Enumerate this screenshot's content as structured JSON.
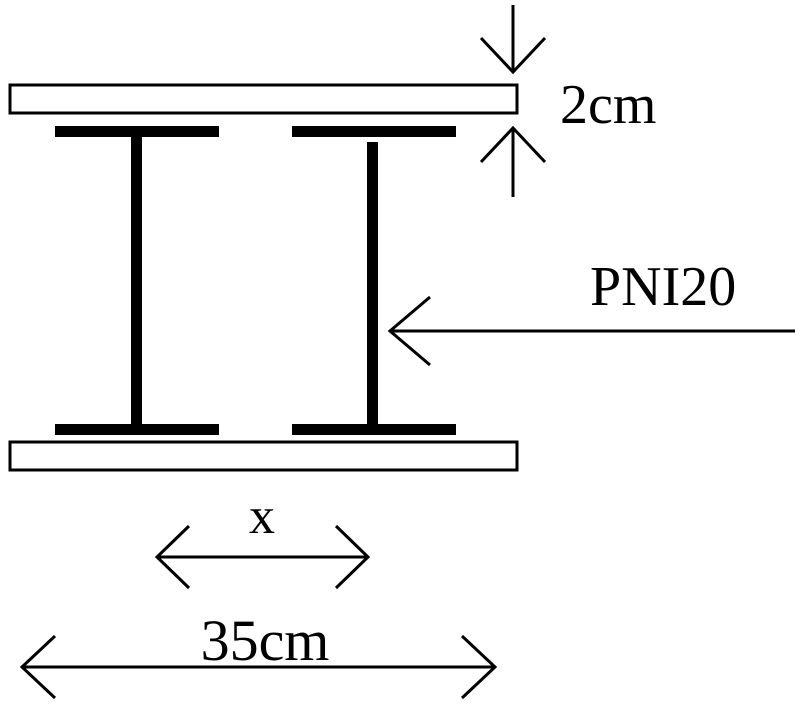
{
  "labels": {
    "plate_thickness": "2cm",
    "profile": "PNI20",
    "spacing": "x",
    "total_width": "35cm"
  }
}
